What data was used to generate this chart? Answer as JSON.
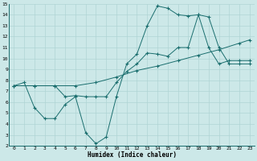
{
  "xlabel": "Humidex (Indice chaleur)",
  "bg_color": "#cce8e8",
  "grid_color": "#b0d4d4",
  "line_color": "#1a6e6e",
  "xlim": [
    -0.5,
    23.5
  ],
  "ylim": [
    2,
    15
  ],
  "xticks": [
    0,
    1,
    2,
    3,
    4,
    5,
    6,
    7,
    8,
    9,
    10,
    11,
    12,
    13,
    14,
    15,
    16,
    17,
    18,
    19,
    20,
    21,
    22,
    23
  ],
  "yticks": [
    2,
    3,
    4,
    5,
    6,
    7,
    8,
    9,
    10,
    11,
    12,
    13,
    14,
    15
  ],
  "line1_x": [
    0,
    2,
    4,
    6,
    8,
    10,
    12,
    14,
    16,
    18,
    20,
    22,
    23
  ],
  "line1_y": [
    7.5,
    7.5,
    7.5,
    7.5,
    7.8,
    8.3,
    8.9,
    9.3,
    9.8,
    10.3,
    10.8,
    11.4,
    11.7
  ],
  "line2_x": [
    0,
    1,
    2,
    3,
    4,
    5,
    6,
    7,
    8,
    9,
    10,
    11,
    12,
    13,
    14,
    15,
    16,
    17,
    18,
    19,
    20,
    21,
    22,
    23
  ],
  "line2_y": [
    7.5,
    7.8,
    5.5,
    4.5,
    4.5,
    5.8,
    6.5,
    3.2,
    2.2,
    2.8,
    6.5,
    9.5,
    10.4,
    13.0,
    14.8,
    14.6,
    14.0,
    13.9,
    14.0,
    11.0,
    9.5,
    9.8,
    9.8,
    9.8
  ],
  "line3_x": [
    0,
    2,
    4,
    5,
    6,
    7,
    8,
    9,
    10,
    11,
    12,
    13,
    14,
    15,
    16,
    17,
    18,
    19,
    20,
    21,
    22,
    23
  ],
  "line3_y": [
    7.5,
    7.5,
    7.5,
    6.5,
    6.6,
    6.5,
    6.5,
    6.5,
    7.8,
    8.8,
    9.5,
    10.5,
    10.4,
    10.2,
    11.0,
    11.0,
    14.0,
    13.8,
    11.0,
    9.5,
    9.5,
    9.5
  ]
}
